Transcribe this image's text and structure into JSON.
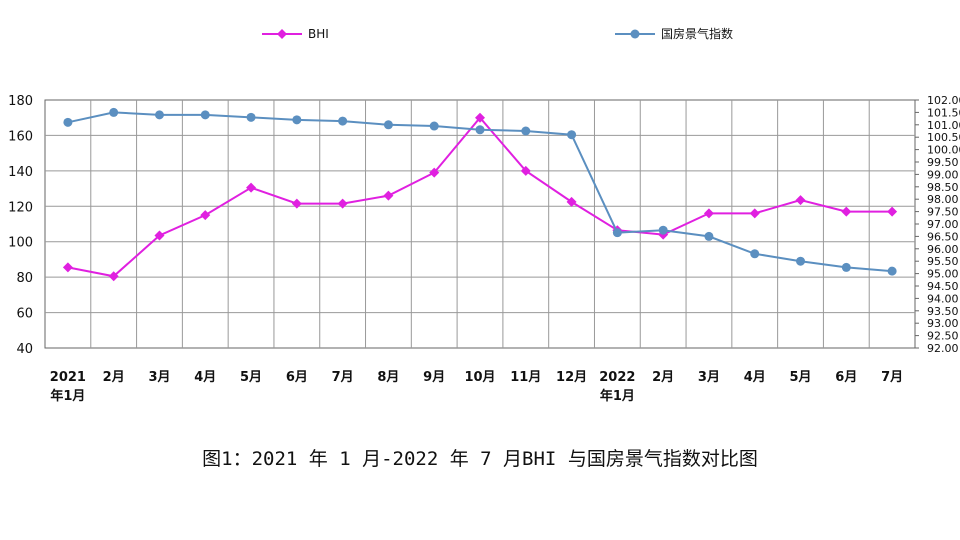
{
  "chart_data": {
    "type": "line",
    "title": "",
    "xlabel": "",
    "ylabel": "",
    "categories": [
      [
        "2021",
        "年1月"
      ],
      [
        "2月"
      ],
      [
        "3月"
      ],
      [
        "4月"
      ],
      [
        "5月"
      ],
      [
        "6月"
      ],
      [
        "7月"
      ],
      [
        "8月"
      ],
      [
        "9月"
      ],
      [
        "10月"
      ],
      [
        "11月"
      ],
      [
        "12月"
      ],
      [
        "2022",
        "年1月"
      ],
      [
        "2月"
      ],
      [
        "3月"
      ],
      [
        "4月"
      ],
      [
        "5月"
      ],
      [
        "6月"
      ],
      [
        "7月"
      ]
    ],
    "ylim": [
      40,
      180
    ],
    "y_ticks": [
      "180",
      "160",
      "140",
      "120",
      "100",
      "80",
      "60",
      "40"
    ],
    "y2lim": [
      92.0,
      102.0
    ],
    "y2_ticks": [
      "102.00",
      "101.50",
      "101.00",
      "100.50",
      "100.00",
      "99.50",
      "99.00",
      "98.50",
      "98.00",
      "97.50",
      "97.00",
      "96.50",
      "96.00",
      "95.50",
      "95.00",
      "94.50",
      "94.00",
      "93.50",
      "93.00",
      "92.50",
      "92.00"
    ],
    "grid": true,
    "legend_position": "top",
    "series": [
      {
        "name": "BHI",
        "axis": "left",
        "color": "#e020e0",
        "marker": "diamond",
        "values": [
          85.5,
          80.5,
          103.5,
          115,
          130.5,
          121.5,
          121.5,
          126,
          139,
          170,
          140,
          122.5,
          106.5,
          104,
          116,
          116,
          123.5,
          117,
          117
        ]
      },
      {
        "name": "国房景气指数",
        "axis": "right",
        "color": "#5b8fc0",
        "marker": "circle",
        "values": [
          101.1,
          101.5,
          101.4,
          101.4,
          101.3,
          101.2,
          101.15,
          101.0,
          100.95,
          100.8,
          100.75,
          100.6,
          96.65,
          96.75,
          96.5,
          95.8,
          95.5,
          95.25,
          95.1
        ]
      }
    ]
  },
  "caption": "图1：2021 年 1 月-2022 年 7 月BHI 与国房景气指数对比图"
}
